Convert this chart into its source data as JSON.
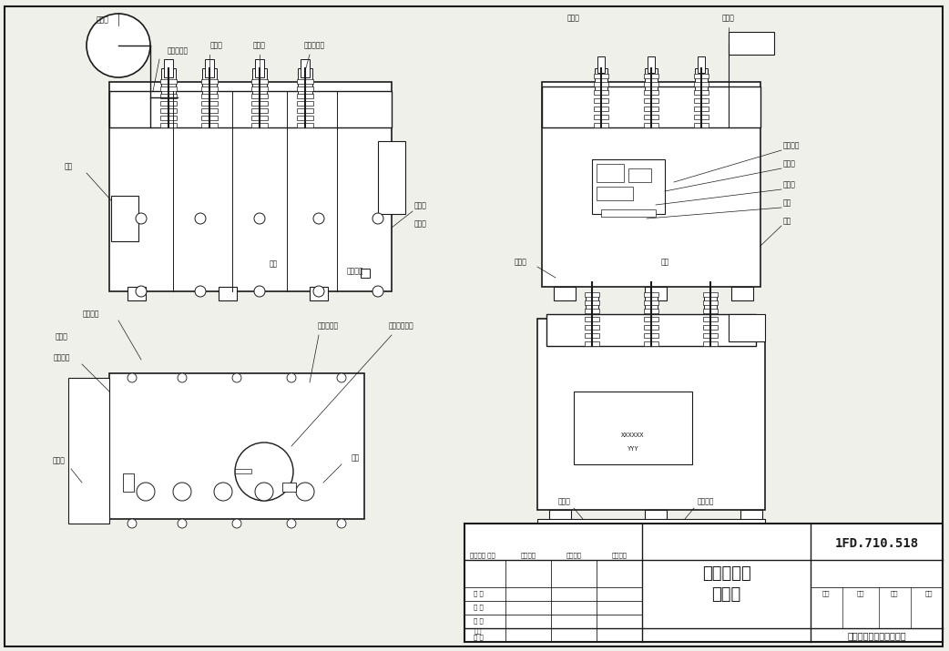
{
  "background_color": "#f0f0eb",
  "line_color": "#1a1a1a",
  "title_block": {
    "main_title": "油浸变压器",
    "sub_title": "外形图",
    "doc_number": "1FD.710.518",
    "company": "山东福大变压器有限公司"
  }
}
